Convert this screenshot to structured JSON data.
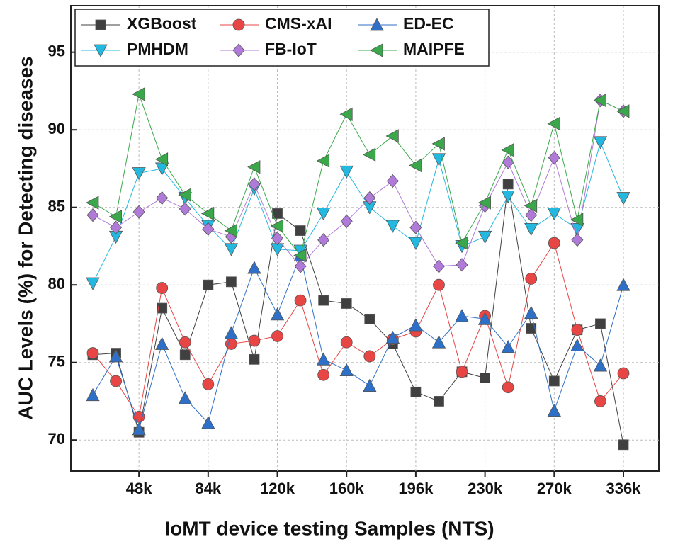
{
  "chart_data": {
    "type": "line",
    "xlabel": "IoMT device testing Samples (NTS)",
    "ylabel": "AUC Levels (%) for Detecting diseases",
    "categories": [
      null,
      null,
      "48k",
      null,
      null,
      "84k",
      null,
      null,
      "120k",
      null,
      null,
      "160k",
      null,
      null,
      "196k",
      null,
      null,
      "230k",
      null,
      null,
      "270k",
      null,
      null,
      "336k"
    ],
    "ylim": [
      68,
      98
    ],
    "yticks": [
      70,
      75,
      80,
      85,
      90,
      95
    ],
    "grid": true,
    "legend": "upper left",
    "series": [
      {
        "name": "XGBoost",
        "color": "#404040",
        "marker": "square",
        "values": [
          75.5,
          75.6,
          70.5,
          78.5,
          75.5,
          80.0,
          80.2,
          75.2,
          84.6,
          83.5,
          79.0,
          78.8,
          77.8,
          76.2,
          73.1,
          72.5,
          74.4,
          74.0,
          86.5,
          77.2,
          73.8,
          77.1,
          77.5,
          69.7
        ]
      },
      {
        "name": "CMS-xAI",
        "color": "#e84545",
        "marker": "circle",
        "values": [
          75.6,
          73.8,
          71.5,
          79.8,
          76.3,
          73.6,
          76.2,
          76.4,
          76.7,
          79.0,
          74.2,
          76.3,
          75.4,
          76.5,
          77.0,
          80.0,
          74.4,
          78.0,
          73.4,
          80.4,
          82.7,
          77.1,
          72.5,
          74.3
        ]
      },
      {
        "name": "ED-EC",
        "color": "#2e6fc7",
        "marker": "triangle-up",
        "values": [
          72.9,
          75.4,
          70.7,
          76.2,
          72.7,
          71.1,
          76.9,
          81.1,
          78.1,
          81.9,
          75.2,
          74.5,
          73.5,
          76.6,
          77.4,
          76.3,
          78.0,
          77.8,
          76.0,
          78.2,
          71.9,
          76.1,
          74.8,
          80.0
        ]
      },
      {
        "name": "PMHDM",
        "color": "#22b8e0",
        "marker": "triangle-down",
        "values": [
          80.1,
          83.1,
          87.2,
          87.5,
          85.6,
          83.8,
          82.3,
          86.2,
          82.3,
          82.2,
          84.6,
          87.3,
          85.0,
          83.8,
          82.7,
          88.1,
          82.5,
          83.1,
          85.7,
          83.6,
          84.6,
          83.6,
          89.2,
          85.6
        ]
      },
      {
        "name": "FB-IoT",
        "color": "#b07ad8",
        "marker": "diamond",
        "values": [
          84.5,
          83.7,
          84.7,
          85.6,
          84.9,
          83.6,
          83.1,
          86.5,
          83.0,
          81.2,
          82.9,
          84.1,
          85.6,
          86.7,
          83.7,
          81.2,
          81.3,
          85.1,
          87.9,
          84.5,
          88.2,
          82.9,
          91.9,
          91.2
        ]
      },
      {
        "name": "MAIPFE",
        "color": "#3aa84a",
        "marker": "triangle-left",
        "values": [
          85.3,
          84.4,
          92.3,
          88.1,
          85.8,
          84.6,
          83.5,
          87.6,
          83.8,
          81.9,
          88.0,
          91.0,
          88.4,
          89.6,
          87.7,
          89.1,
          82.7,
          85.3,
          88.7,
          85.1,
          90.4,
          84.2,
          91.9,
          91.2
        ]
      }
    ]
  }
}
